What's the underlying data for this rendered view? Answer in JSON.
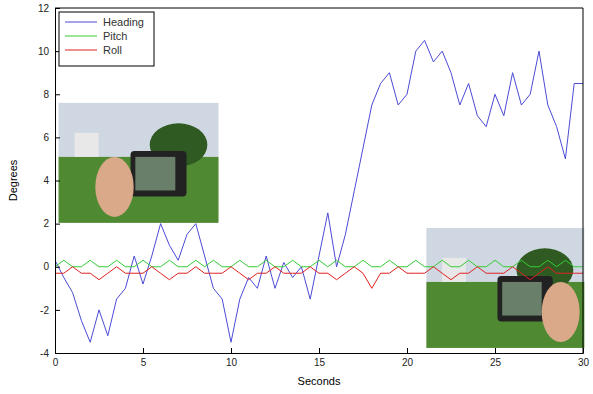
{
  "chart_data": {
    "type": "line",
    "x_label": "Seconds",
    "y_label": "Degrees",
    "x": [
      0,
      0.5,
      1,
      1.5,
      2,
      2.5,
      3,
      3.5,
      4,
      4.5,
      5,
      5.5,
      6,
      6.5,
      7,
      7.5,
      8,
      8.5,
      9,
      9.5,
      10,
      10.5,
      11,
      11.5,
      12,
      12.5,
      13,
      13.5,
      14,
      14.5,
      15,
      15.5,
      16,
      16.5,
      17,
      17.5,
      18,
      18.5,
      19,
      19.5,
      20,
      20.5,
      21,
      21.5,
      22,
      22.5,
      23,
      23.5,
      24,
      24.5,
      25,
      25.5,
      26,
      26.5,
      27,
      27.5,
      28,
      28.5,
      29,
      29.5,
      30
    ],
    "series": [
      {
        "name": "Heading",
        "color": "#4b4bd6",
        "values": [
          0.3,
          -0.5,
          -1.2,
          -2.5,
          -3.5,
          -2,
          -3.2,
          -1.5,
          -1,
          0.5,
          -0.8,
          0.5,
          2,
          1,
          0.3,
          1.5,
          2,
          0.5,
          -1,
          -1.5,
          -3.5,
          -1.5,
          -0.5,
          -1,
          0.5,
          -1,
          0.2,
          -0.5,
          0,
          -1.5,
          0.5,
          2.5,
          0,
          1.5,
          3.5,
          5.5,
          7.5,
          8.5,
          9,
          7.5,
          8,
          10,
          10.5,
          9.5,
          10,
          9,
          7.5,
          8.5,
          7,
          6.5,
          8,
          7,
          9,
          7.5,
          8,
          10,
          7.5,
          6.5,
          5,
          8.5,
          8.5
        ]
      },
      {
        "name": "Pitch",
        "color": "#33cc33",
        "values": [
          0,
          0.3,
          0,
          0,
          0.3,
          0,
          0,
          0.3,
          0,
          0,
          0.3,
          0,
          0,
          0.3,
          0,
          0,
          0.3,
          0,
          0.3,
          0,
          0,
          0.3,
          0,
          0,
          0.3,
          0,
          0,
          0.3,
          0,
          0,
          0.3,
          0,
          0.3,
          0,
          0,
          0.3,
          0,
          0,
          0.3,
          0,
          0,
          0.3,
          0,
          0,
          0.3,
          0,
          0,
          0.3,
          0,
          0,
          0.3,
          0,
          0,
          0.3,
          0,
          0,
          0.3,
          0,
          0.3,
          0,
          0
        ]
      },
      {
        "name": "Roll",
        "color": "#e02020",
        "values": [
          -0.3,
          -0.3,
          0,
          -0.3,
          -0.3,
          -0.6,
          -0.3,
          0,
          -0.3,
          -0.3,
          -0.3,
          0,
          -0.3,
          -0.6,
          -0.3,
          -0.3,
          0,
          -0.3,
          -0.3,
          -0.3,
          0,
          -0.3,
          -0.6,
          -0.3,
          -0.3,
          0,
          -0.3,
          -0.3,
          -0.3,
          0,
          -0.3,
          -0.3,
          -0.6,
          -0.3,
          0,
          -0.3,
          -1,
          -0.3,
          -0.3,
          0,
          -0.3,
          -0.3,
          -0.3,
          0,
          -0.3,
          -0.6,
          -0.3,
          -0.3,
          0,
          -0.3,
          -0.3,
          -0.3,
          0,
          -0.3,
          -0.6,
          -0.3,
          0,
          -0.3,
          -0.3,
          -0.3,
          -0.3
        ]
      }
    ],
    "xlim": [
      0,
      30
    ],
    "xticks": [
      0,
      5,
      10,
      15,
      20,
      25,
      30
    ],
    "ylim": [
      -4,
      12
    ],
    "yticks": [
      -4,
      -2,
      0,
      2,
      4,
      6,
      8,
      10,
      12
    ],
    "grid": false,
    "legend": "upper-left"
  }
}
